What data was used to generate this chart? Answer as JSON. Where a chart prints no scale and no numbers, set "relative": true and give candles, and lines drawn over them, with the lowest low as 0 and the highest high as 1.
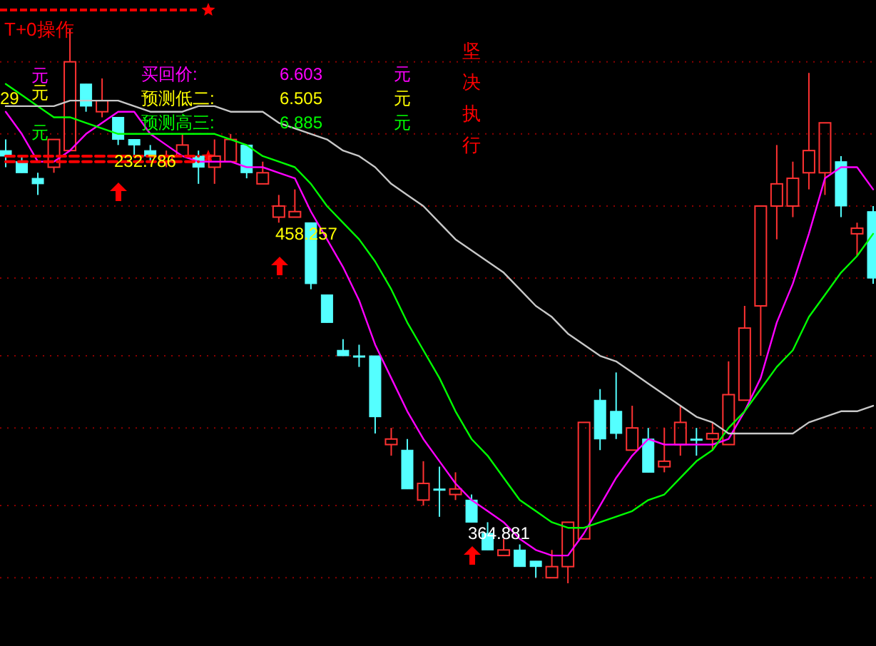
{
  "chart_data": {
    "type": "candlestick",
    "title": "T+0操作",
    "relative": true,
    "ref_lines": [
      {
        "axis": "y",
        "value": 0.94,
        "color": "#8b0000",
        "line_style": "dotted"
      },
      {
        "axis": "y",
        "value": 0.81,
        "color": "#8b0000",
        "line_style": "dotted"
      },
      {
        "axis": "y",
        "value": 0.68,
        "color": "#8b0000",
        "line_style": "dotted"
      },
      {
        "axis": "y",
        "value": 0.55,
        "color": "#8b0000",
        "line_style": "dotted"
      },
      {
        "axis": "y",
        "value": 0.41,
        "color": "#8b0000",
        "line_style": "dotted"
      },
      {
        "axis": "y",
        "value": 0.28,
        "color": "#8b0000",
        "line_style": "dotted"
      },
      {
        "axis": "y",
        "value": 0.14,
        "color": "#8b0000",
        "line_style": "dotted"
      },
      {
        "axis": "y",
        "value": 0.01,
        "color": "#8b0000",
        "line_style": "dotted"
      }
    ],
    "categories": [
      null,
      null,
      null,
      null,
      null,
      null,
      null,
      null,
      null,
      null,
      null,
      null,
      null,
      null,
      null,
      null,
      null,
      null,
      null,
      null,
      null,
      null,
      null,
      null,
      null,
      null,
      null,
      null,
      null,
      null,
      null,
      null,
      null,
      null,
      null,
      null,
      null,
      null,
      null,
      null,
      null,
      null,
      null,
      null,
      null,
      null,
      null,
      null,
      null,
      null,
      null,
      null,
      null,
      null,
      null
    ],
    "ohlc": [
      [
        0.78,
        0.8,
        0.75,
        0.77
      ],
      [
        0.76,
        0.77,
        0.74,
        0.74
      ],
      [
        0.73,
        0.74,
        0.7,
        0.72
      ],
      [
        0.75,
        0.8,
        0.74,
        0.8
      ],
      [
        0.78,
        1,
        0.78,
        0.94
      ],
      [
        0.9,
        0.9,
        0.85,
        0.86
      ],
      [
        0.85,
        0.91,
        0.84,
        0.87
      ],
      [
        0.84,
        0.84,
        0.79,
        0.8
      ],
      [
        0.8,
        0.8,
        0.77,
        0.79
      ],
      [
        0.78,
        0.79,
        0.76,
        0.77
      ],
      [
        0.76,
        0.78,
        0.75,
        0.77
      ],
      [
        0.77,
        0.81,
        0.77,
        0.79
      ],
      [
        0.77,
        0.78,
        0.72,
        0.75
      ],
      [
        0.75,
        0.8,
        0.72,
        0.77
      ],
      [
        0.76,
        0.81,
        0.76,
        0.8
      ],
      [
        0.79,
        0.79,
        0.73,
        0.74
      ],
      [
        0.72,
        0.76,
        0.72,
        0.74
      ],
      [
        0.66,
        0.7,
        0.65,
        0.68
      ],
      [
        0.66,
        0.71,
        0.66,
        0.67
      ],
      [
        0.65,
        0.65,
        0.53,
        0.54
      ],
      [
        0.52,
        0.52,
        0.47,
        0.47
      ],
      [
        0.42,
        0.44,
        0.41,
        0.41
      ],
      [
        0.41,
        0.43,
        0.39,
        0.41
      ],
      [
        0.41,
        0.41,
        0.27,
        0.3
      ],
      [
        0.25,
        0.28,
        0.23,
        0.26
      ],
      [
        0.24,
        0.26,
        0.17,
        0.17
      ],
      [
        0.15,
        0.22,
        0.14,
        0.18
      ],
      [
        0.17,
        0.21,
        0.12,
        0.17
      ],
      [
        0.16,
        0.2,
        0.15,
        0.17
      ],
      [
        0.15,
        0.16,
        0.11,
        0.11
      ],
      [
        0.09,
        0.11,
        0.06,
        0.06
      ],
      [
        0.05,
        0.08,
        0.05,
        0.06
      ],
      [
        0.06,
        0.07,
        0.03,
        0.03
      ],
      [
        0.04,
        0.04,
        0.01,
        0.03
      ],
      [
        0.01,
        0.06,
        0.01,
        0.03
      ],
      [
        0.03,
        0.11,
        0,
        0.11
      ],
      [
        0.08,
        0.29,
        0.08,
        0.29
      ],
      [
        0.33,
        0.35,
        0.24,
        0.26
      ],
      [
        0.31,
        0.38,
        0.26,
        0.27
      ],
      [
        0.24,
        0.32,
        0.24,
        0.28
      ],
      [
        0.26,
        0.28,
        0.2,
        0.2
      ],
      [
        0.21,
        0.28,
        0.2,
        0.22
      ],
      [
        0.25,
        0.32,
        0.23,
        0.29
      ],
      [
        0.26,
        0.28,
        0.23,
        0.26
      ],
      [
        0.26,
        0.29,
        0.24,
        0.27
      ],
      [
        0.25,
        0.4,
        0.25,
        0.34
      ],
      [
        0.33,
        0.5,
        0.33,
        0.46
      ],
      [
        0.5,
        0.68,
        0.41,
        0.68
      ],
      [
        0.68,
        0.79,
        0.62,
        0.72
      ],
      [
        0.68,
        0.76,
        0.66,
        0.73
      ],
      [
        0.74,
        0.92,
        0.71,
        0.78
      ],
      [
        0.74,
        0.83,
        0.7,
        0.83
      ],
      [
        0.76,
        0.77,
        0.66,
        0.68
      ],
      [
        0.63,
        0.65,
        0.59,
        0.64
      ],
      [
        0.67,
        0.68,
        0.54,
        0.55
      ]
    ],
    "series": [
      {
        "type": "line",
        "color": "#ff00ff",
        "values": [
          0.85,
          0.81,
          0.76,
          0.76,
          0.78,
          0.81,
          0.83,
          0.85,
          0.85,
          0.81,
          0.79,
          0.77,
          0.76,
          0.76,
          0.76,
          0.75,
          0.75,
          0.74,
          0.73,
          0.67,
          0.62,
          0.57,
          0.51,
          0.43,
          0.37,
          0.31,
          0.26,
          0.22,
          0.18,
          0.15,
          0.13,
          0.11,
          0.08,
          0.06,
          0.05,
          0.05,
          0.09,
          0.14,
          0.19,
          0.23,
          0.26,
          0.25,
          0.25,
          0.25,
          0.25,
          0.26,
          0.31,
          0.37,
          0.47,
          0.54,
          0.63,
          0.73,
          0.75,
          0.75,
          0.71
        ]
      },
      {
        "type": "line",
        "color": "#00ff00",
        "values": [
          0.9,
          0.88,
          0.86,
          0.84,
          0.84,
          0.83,
          0.82,
          0.81,
          0.81,
          0.81,
          0.81,
          0.81,
          0.81,
          0.81,
          0.8,
          0.79,
          0.77,
          0.76,
          0.75,
          0.72,
          0.68,
          0.65,
          0.62,
          0.58,
          0.53,
          0.47,
          0.42,
          0.37,
          0.31,
          0.26,
          0.23,
          0.19,
          0.15,
          0.13,
          0.11,
          0.1,
          0.1,
          0.11,
          0.12,
          0.13,
          0.15,
          0.16,
          0.19,
          0.22,
          0.24,
          0.28,
          0.31,
          0.35,
          0.39,
          0.42,
          0.48,
          0.52,
          0.56,
          0.59,
          0.63
        ]
      },
      {
        "type": "line",
        "color": "#c8c8c8",
        "values": [
          0.86,
          0.86,
          0.86,
          0.86,
          0.87,
          0.87,
          0.87,
          0.87,
          0.86,
          0.85,
          0.85,
          0.85,
          0.86,
          0.86,
          0.85,
          0.85,
          0.85,
          0.83,
          0.82,
          0.81,
          0.8,
          0.78,
          0.77,
          0.75,
          0.72,
          0.7,
          0.68,
          0.65,
          0.62,
          0.6,
          0.58,
          0.56,
          0.53,
          0.5,
          0.48,
          0.45,
          0.43,
          0.41,
          0.4,
          0.38,
          0.36,
          0.34,
          0.32,
          0.3,
          0.29,
          0.27,
          0.27,
          0.27,
          0.27,
          0.27,
          0.29,
          0.3,
          0.31,
          0.31,
          0.32
        ]
      },
      {
        "type": "line",
        "color": "#ff0000",
        "line_style": "dashed",
        "values": [
          0.77,
          0.77,
          0.77,
          0.77,
          0.77,
          0.77,
          0.77,
          0.77,
          0.77,
          0.77,
          0.77,
          0.77,
          0.77,
          null,
          null,
          null,
          null,
          null,
          null,
          null,
          null,
          null,
          null,
          null,
          null,
          null,
          null,
          null,
          null,
          null,
          null,
          null,
          null,
          null,
          null,
          null,
          null,
          null,
          null,
          null,
          null,
          null,
          null,
          null,
          null,
          null,
          null,
          null,
          null,
          null,
          null,
          null,
          null,
          null,
          null
        ]
      },
      {
        "type": "line",
        "color": "#ff0000",
        "line_style": "dashed",
        "values": [
          0.76,
          0.76,
          0.76,
          0.76,
          0.76,
          0.76,
          0.76,
          0.76,
          0.76,
          0.76,
          0.76,
          0.76,
          0.76,
          null,
          null,
          null,
          null,
          null,
          null,
          null,
          null,
          null,
          null,
          null,
          null,
          null,
          null,
          null,
          null,
          null,
          null,
          null,
          null,
          null,
          null,
          null,
          null,
          null,
          null,
          null,
          null,
          null,
          null,
          null,
          null,
          null,
          null,
          null,
          null,
          null,
          null,
          null,
          null,
          null,
          null
        ]
      }
    ],
    "annotations": [
      "29",
      "元",
      "元",
      "元",
      "买回价:",
      "6.603",
      "元",
      "预测低二:",
      "6.505",
      "元",
      "预测高三:",
      "6.885",
      "元",
      "坚决执行",
      "232.786",
      "458.257",
      "364.881"
    ]
  }
}
